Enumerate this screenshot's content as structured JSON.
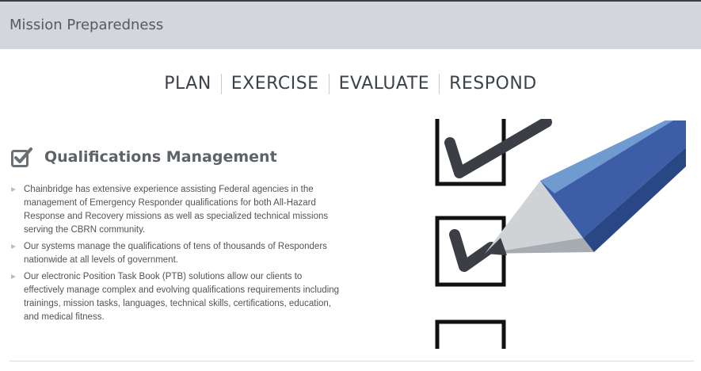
{
  "header": {
    "title": "Mission Preparedness"
  },
  "nav": {
    "items": [
      "PLAN",
      "EXERCISE",
      "EVALUATE",
      "RESPOND"
    ]
  },
  "section": {
    "icon": "checkbox-checked-icon",
    "title": "Qualifications Management",
    "bullets": [
      "Chainbridge has extensive experience assisting Federal agencies in the management of Emergency Responder qualifications for both All-Hazard Response and Recovery missions as well as specialized technical missions serving the CBRN community.",
      "Our systems manage the qualifications of tens of thousands of Responders nationwide at all levels of government.",
      "Our electronic Position Task Book (PTB) solutions allow our clients to effectively manage complex and evolving qualifications requirements including trainings, mission tasks, languages, technical skills, certifications, education, and medical fitness."
    ]
  },
  "illustration": {
    "name": "checklist-pencil-illustration"
  },
  "colors": {
    "header_bg": "#d3d7db",
    "pencil_blue": "#3f5fa8",
    "pencil_light": "#6f9bd1",
    "check_dark": "#3b3f45"
  }
}
